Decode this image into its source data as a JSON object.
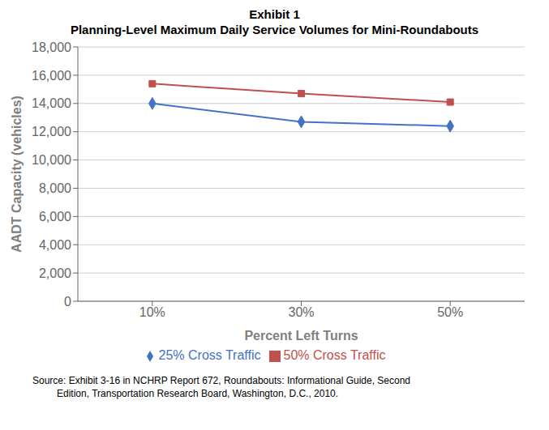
{
  "chart_data": {
    "type": "line",
    "title": "Exhibit 1",
    "subtitle": "Planning-Level Maximum Daily Service Volumes for Mini-Roundabouts",
    "x_label": "Percent Left Turns",
    "y_label": "AADT Capacity (vehicles)",
    "x": [
      10,
      30,
      50
    ],
    "xlim": [
      0,
      60
    ],
    "xticks": [
      {
        "value": 10,
        "label": "10%"
      },
      {
        "value": 30,
        "label": "30%"
      },
      {
        "value": 50,
        "label": "50%"
      }
    ],
    "ylim": [
      0,
      18000
    ],
    "yticks": [
      0,
      {
        "value": 2000,
        "label": "2,000"
      },
      {
        "value": 4000,
        "label": "4,000"
      },
      {
        "value": 6000,
        "label": "6,000"
      },
      {
        "value": 8000,
        "label": "8,000"
      },
      {
        "value": 10000,
        "label": "10,000"
      },
      {
        "value": 12000,
        "label": "12,000"
      },
      {
        "value": 14000,
        "label": "14,000"
      },
      {
        "value": 16000,
        "label": "16,000"
      },
      {
        "value": 18000,
        "label": "18,000"
      }
    ],
    "series": [
      {
        "name": "25% Cross Traffic",
        "color": "#4472C4",
        "marker": "diamond",
        "values": [
          14000,
          12700,
          12400
        ]
      },
      {
        "name": "50% Cross Traffic",
        "color": "#C0504D",
        "marker": "square",
        "values": [
          15400,
          14700,
          14100
        ]
      }
    ],
    "grid": "y",
    "legend": "bottom",
    "annotations": [
      "Source: Exhibit 3-16 in NCHRP Report 672, Roundabouts: Informational Guide, Second",
      "         Edition, Transportation Research Board, Washington, D.C., 2010."
    ]
  }
}
